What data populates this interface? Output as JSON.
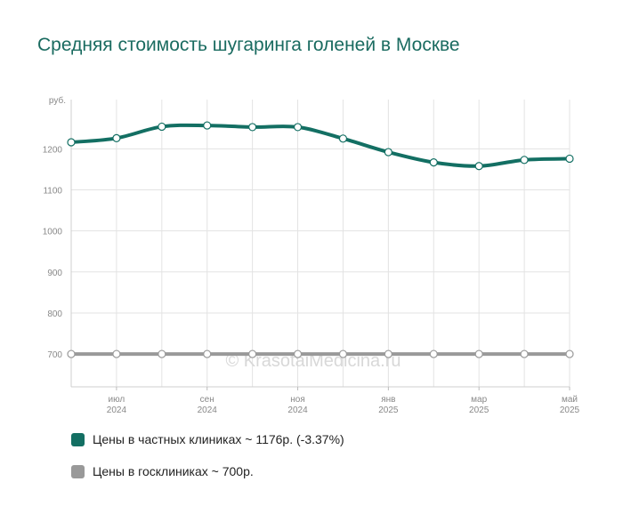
{
  "title": "Средняя стоимость шугаринга голеней в Москве",
  "watermark": "© KrasotaiMedicina.ru",
  "chart_data": {
    "type": "line",
    "y_unit": "руб.",
    "ylim": [
      620,
      1320
    ],
    "yticks": [
      700,
      800,
      900,
      1000,
      1100,
      1200
    ],
    "x_ticks": [
      {
        "x": 1,
        "month": "июл",
        "year": "2024"
      },
      {
        "x": 3,
        "month": "сен",
        "year": "2024"
      },
      {
        "x": 5,
        "month": "ноя",
        "year": "2024"
      },
      {
        "x": 7,
        "month": "янв",
        "year": "2025"
      },
      {
        "x": 9,
        "month": "мар",
        "year": "2025"
      },
      {
        "x": 11,
        "month": "май",
        "year": "2025"
      }
    ],
    "grid": true,
    "legend_position": "bottom",
    "series": [
      {
        "name": "Цены в частных клиниках ~ 1176р. (-3.37%)",
        "color": "#136f63",
        "values": [
          1216,
          1226,
          1254,
          1257,
          1253,
          1253,
          1225,
          1192,
          1167,
          1158,
          1173,
          1176
        ]
      },
      {
        "name": "Цены в госклиниках ~ 700р.",
        "color": "#999999",
        "values": [
          700,
          700,
          700,
          700,
          700,
          700,
          700,
          700,
          700,
          700,
          700,
          700
        ]
      }
    ]
  }
}
